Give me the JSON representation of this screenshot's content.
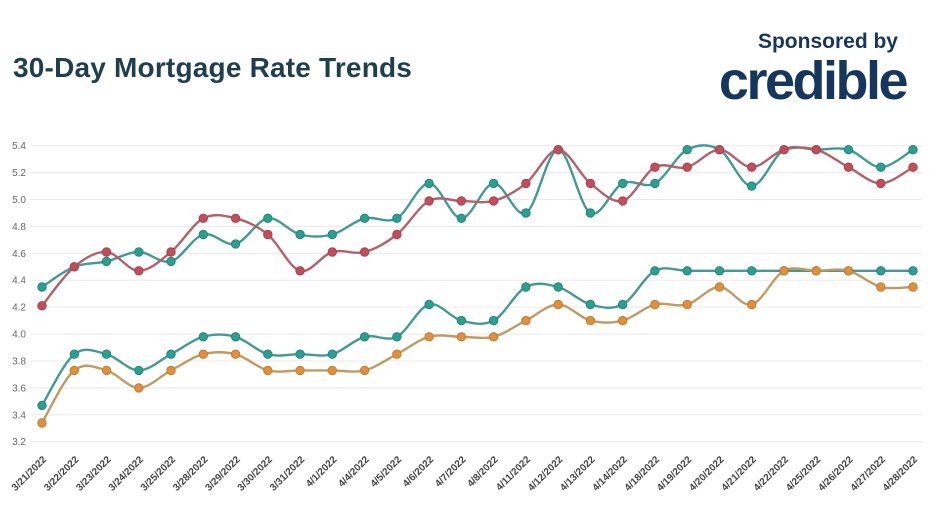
{
  "header": {
    "title": "30-Day Mortgage Rate Trends",
    "sponsored_label": "Sponsored by",
    "brand": "credible"
  },
  "colors": {
    "background": "#ffffff",
    "title_text": "#1f3f4c",
    "brand_navy": "#17365e",
    "grid_line": "#e9e9e9",
    "y_axis_text": "#666666",
    "x_axis_text": "#454545",
    "teal": "#2d9f90",
    "red": "#c04e5b",
    "orange": "#de9041"
  },
  "chart_data": {
    "type": "line",
    "title": "30-Day Mortgage Rate Trends",
    "xlabel": "",
    "ylabel": "",
    "grid": true,
    "legend": "none",
    "ylim": [
      3.2,
      5.4
    ],
    "ytick_step": 0.2,
    "ytick_labels": [
      "5.4",
      "5.2",
      "5.0",
      "4.8",
      "4.6",
      "4.4",
      "4.2",
      "4.0",
      "3.8",
      "3.6",
      "3.4",
      "3.2"
    ],
    "x": [
      "3/21/2022",
      "3/22/2022",
      "3/23/2022",
      "3/24/2022",
      "3/25/2022",
      "3/28/2022",
      "3/29/2022",
      "3/30/2022",
      "3/31/2022",
      "4/1/2022",
      "4/4/2022",
      "4/5/2022",
      "4/6/2022",
      "4/7/2022",
      "4/8/2022",
      "4/11/2022",
      "4/12/2022",
      "4/13/2022",
      "4/14/2022",
      "4/18/2022",
      "4/19/2022",
      "4/20/2022",
      "4/21/2022",
      "4/22/2022",
      "4/25/2022",
      "4/26/2022",
      "4/27/2022",
      "4/28/2022"
    ],
    "series": [
      {
        "name": "teal-upper-rate",
        "line_color": "#449992",
        "dot_color": "#2d9f90",
        "dot_stroke": "#22857c",
        "values": [
          4.35,
          4.5,
          4.54,
          4.61,
          4.54,
          4.74,
          4.67,
          4.86,
          4.74,
          4.74,
          4.86,
          4.86,
          5.12,
          4.86,
          5.12,
          4.9,
          5.37,
          4.9,
          5.12,
          5.12,
          5.37,
          5.37,
          5.1,
          5.37,
          5.37,
          5.37,
          5.24,
          5.37
        ]
      },
      {
        "name": "red-rate",
        "line_color": "#b26069",
        "dot_color": "#c04e5b",
        "dot_stroke": "#a8424e",
        "values": [
          4.21,
          4.5,
          4.61,
          4.47,
          4.61,
          4.86,
          4.86,
          4.74,
          4.47,
          4.61,
          4.61,
          4.74,
          4.99,
          4.99,
          4.99,
          5.12,
          5.37,
          5.12,
          4.99,
          5.24,
          5.24,
          5.37,
          5.24,
          5.37,
          5.37,
          5.24,
          5.12,
          5.24
        ]
      },
      {
        "name": "teal-lower-rate",
        "line_color": "#449992",
        "dot_color": "#2d9f90",
        "dot_stroke": "#22857c",
        "values": [
          3.47,
          3.85,
          3.85,
          3.73,
          3.85,
          3.98,
          3.98,
          3.85,
          3.85,
          3.85,
          3.98,
          3.98,
          4.22,
          4.1,
          4.1,
          4.35,
          4.35,
          4.22,
          4.22,
          4.47,
          4.47,
          4.47,
          4.47,
          4.47,
          4.47,
          4.47,
          4.47,
          4.47
        ]
      },
      {
        "name": "orange-rate",
        "line_color": "#bf9b64",
        "dot_color": "#de9041",
        "dot_stroke": "#c27a2e",
        "values": [
          3.34,
          3.73,
          3.73,
          3.6,
          3.73,
          3.85,
          3.85,
          3.73,
          3.73,
          3.73,
          3.73,
          3.85,
          3.98,
          3.98,
          3.98,
          4.1,
          4.22,
          4.1,
          4.1,
          4.22,
          4.22,
          4.35,
          4.22,
          4.47,
          4.47,
          4.47,
          4.35,
          4.35
        ]
      }
    ]
  }
}
